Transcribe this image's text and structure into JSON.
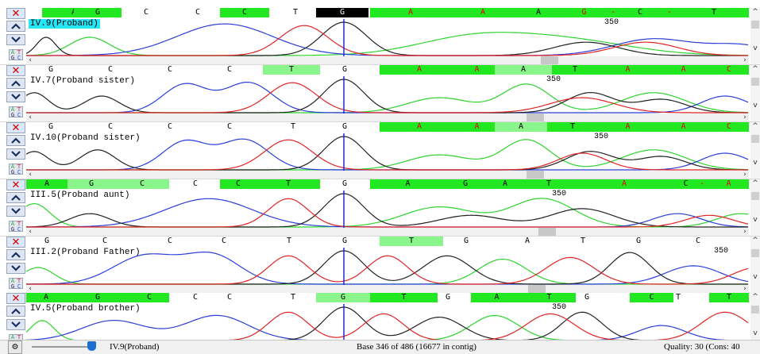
{
  "colors": {
    "bright": "#22e822",
    "light": "#8af58a",
    "black": "#000000",
    "trace_a": "#2fd32f",
    "trace_c": "#2b3ed8",
    "trace_g": "#222222",
    "trace_t": "#e02424",
    "cursor": "#1a1ad6"
  },
  "position_label": "350",
  "panels": [
    {
      "label": "IV.9(Proband)",
      "label_highlight": true,
      "bases": [
        {
          "b": "A",
          "x": 20,
          "w": 80,
          "bg": "#22e822",
          "c": "#000"
        },
        {
          "b": "G",
          "x": 60,
          "w": 60,
          "bg": "#22e822",
          "c": "#000"
        },
        {
          "b": "C",
          "x": 150,
          "w": 1,
          "bg": "",
          "c": "#000"
        },
        {
          "b": "C",
          "x": 215,
          "w": 1,
          "bg": "",
          "c": "#000"
        },
        {
          "b": "C",
          "x": 244,
          "w": 62,
          "bg": "#22e822",
          "c": "#000"
        },
        {
          "b": "T",
          "x": 338,
          "w": 1,
          "bg": "",
          "c": "#000"
        },
        {
          "b": "G",
          "x": 365,
          "w": 66,
          "bg": "#000000",
          "c": "#fff"
        },
        {
          "b": "A",
          "x": 433,
          "w": 102,
          "bg": "#22e822",
          "c": "#e00000"
        },
        {
          "b": "A",
          "x": 535,
          "w": 80,
          "bg": "#22e822",
          "c": "#e00000"
        },
        {
          "b": "A",
          "x": 615,
          "w": 60,
          "bg": "#22e822",
          "c": "#000"
        },
        {
          "b": "G",
          "x": 675,
          "w": 55,
          "bg": "#22e822",
          "c": "#e00000"
        },
        {
          "b": "-",
          "x": 730,
          "w": 18,
          "bg": "#22e822",
          "c": "#e00000"
        },
        {
          "b": "C",
          "x": 748,
          "w": 50,
          "bg": "#22e822",
          "c": "#000"
        },
        {
          "b": "-",
          "x": 798,
          "w": 24,
          "bg": "#22e822",
          "c": "#e00000"
        },
        {
          "b": "T",
          "x": 822,
          "w": 88,
          "bg": "#22e822",
          "c": "#000"
        }
      ],
      "pos_x": 728
    },
    {
      "label": "IV.7(Proband sister)",
      "label_highlight": false,
      "bases": [
        {
          "b": "G",
          "x": 30,
          "w": 1,
          "bg": "",
          "c": "#000"
        },
        {
          "b": "C",
          "x": 105,
          "w": 1,
          "bg": "",
          "c": "#000"
        },
        {
          "b": "C",
          "x": 180,
          "w": 1,
          "bg": "",
          "c": "#000"
        },
        {
          "b": "C",
          "x": 255,
          "w": 1,
          "bg": "",
          "c": "#000"
        },
        {
          "b": "T",
          "x": 298,
          "w": 72,
          "bg": "#8af58a",
          "c": "#000"
        },
        {
          "b": "G",
          "x": 400,
          "w": 1,
          "bg": "",
          "c": "#000"
        },
        {
          "b": "A",
          "x": 445,
          "w": 100,
          "bg": "#22e822",
          "c": "#e00000"
        },
        {
          "b": "A",
          "x": 545,
          "w": 45,
          "bg": "#22e822",
          "c": "#e00000"
        },
        {
          "b": "A",
          "x": 590,
          "w": 72,
          "bg": "#8af58a",
          "c": "#000"
        },
        {
          "b": "T",
          "x": 662,
          "w": 58,
          "bg": "#22e822",
          "c": "#000"
        },
        {
          "b": "A",
          "x": 720,
          "w": 75,
          "bg": "#22e822",
          "c": "#e00000"
        },
        {
          "b": "A",
          "x": 795,
          "w": 65,
          "bg": "#22e822",
          "c": "#e00000"
        },
        {
          "b": "C",
          "x": 860,
          "w": 50,
          "bg": "#22e822",
          "c": "#e00000"
        }
      ],
      "pos_x": 655
    },
    {
      "label": "IV.10(Proband sister)",
      "label_highlight": false,
      "bases": [
        {
          "b": "G",
          "x": 30,
          "w": 1,
          "bg": "",
          "c": "#000"
        },
        {
          "b": "C",
          "x": 105,
          "w": 1,
          "bg": "",
          "c": "#000"
        },
        {
          "b": "C",
          "x": 180,
          "w": 1,
          "bg": "",
          "c": "#000"
        },
        {
          "b": "C",
          "x": 255,
          "w": 1,
          "bg": "",
          "c": "#000"
        },
        {
          "b": "T",
          "x": 335,
          "w": 1,
          "bg": "",
          "c": "#000"
        },
        {
          "b": "G",
          "x": 400,
          "w": 1,
          "bg": "",
          "c": "#000"
        },
        {
          "b": "A",
          "x": 445,
          "w": 100,
          "bg": "#22e822",
          "c": "#e00000"
        },
        {
          "b": "A",
          "x": 545,
          "w": 45,
          "bg": "#22e822",
          "c": "#e00000"
        },
        {
          "b": "A",
          "x": 590,
          "w": 66,
          "bg": "#8af58a",
          "c": "#000"
        },
        {
          "b": "T",
          "x": 656,
          "w": 64,
          "bg": "#22e822",
          "c": "#000"
        },
        {
          "b": "A",
          "x": 720,
          "w": 75,
          "bg": "#22e822",
          "c": "#e00000"
        },
        {
          "b": "A",
          "x": 795,
          "w": 65,
          "bg": "#22e822",
          "c": "#e00000"
        },
        {
          "b": "C",
          "x": 860,
          "w": 50,
          "bg": "#22e822",
          "c": "#e00000"
        }
      ],
      "pos_x": 715
    },
    {
      "label": "III.5(Proband aunt)",
      "label_highlight": false,
      "bases": [
        {
          "b": "A",
          "x": 0,
          "w": 52,
          "bg": "#22e822",
          "c": "#000"
        },
        {
          "b": "G",
          "x": 52,
          "w": 60,
          "bg": "#8af58a",
          "c": "#000"
        },
        {
          "b": "C",
          "x": 112,
          "w": 68,
          "bg": "#8af58a",
          "c": "#000"
        },
        {
          "b": "C",
          "x": 212,
          "w": 1,
          "bg": "",
          "c": "#000"
        },
        {
          "b": "C",
          "x": 244,
          "w": 46,
          "bg": "#22e822",
          "c": "#000"
        },
        {
          "b": "T",
          "x": 290,
          "w": 80,
          "bg": "#22e822",
          "c": "#000"
        },
        {
          "b": "G",
          "x": 400,
          "w": 1,
          "bg": "",
          "c": "#000"
        },
        {
          "b": "A",
          "x": 433,
          "w": 95,
          "bg": "#22e822",
          "c": "#000"
        },
        {
          "b": "G",
          "x": 528,
          "w": 50,
          "bg": "#22e822",
          "c": "#000"
        },
        {
          "b": "A",
          "x": 578,
          "w": 50,
          "bg": "#22e822",
          "c": "#000"
        },
        {
          "b": "T",
          "x": 628,
          "w": 60,
          "bg": "#22e822",
          "c": "#000"
        },
        {
          "b": "A",
          "x": 688,
          "w": 130,
          "bg": "#22e822",
          "c": "#e00000"
        },
        {
          "b": "C",
          "x": 818,
          "w": 25,
          "bg": "#22e822",
          "c": "#000"
        },
        {
          "b": "-",
          "x": 843,
          "w": 16,
          "bg": "#22e822",
          "c": "#e00000"
        },
        {
          "b": "A",
          "x": 859,
          "w": 51,
          "bg": "#22e822",
          "c": "#e00000"
        }
      ],
      "pos_x": 662
    },
    {
      "label": "III.2(Proband Father)",
      "label_highlight": false,
      "bases": [
        {
          "b": "G",
          "x": 25,
          "w": 1,
          "bg": "",
          "c": "#000"
        },
        {
          "b": "C",
          "x": 98,
          "w": 1,
          "bg": "",
          "c": "#000"
        },
        {
          "b": "C",
          "x": 180,
          "w": 1,
          "bg": "",
          "c": "#000"
        },
        {
          "b": "C",
          "x": 248,
          "w": 1,
          "bg": "",
          "c": "#000"
        },
        {
          "b": "T",
          "x": 330,
          "w": 1,
          "bg": "",
          "c": "#000"
        },
        {
          "b": "G",
          "x": 400,
          "w": 1,
          "bg": "",
          "c": "#000"
        },
        {
          "b": "T",
          "x": 445,
          "w": 80,
          "bg": "#8af58a",
          "c": "#000"
        },
        {
          "b": "G",
          "x": 553,
          "w": 1,
          "bg": "",
          "c": "#000"
        },
        {
          "b": "A",
          "x": 630,
          "w": 1,
          "bg": "",
          "c": "#000"
        },
        {
          "b": "T",
          "x": 700,
          "w": 1,
          "bg": "",
          "c": "#000"
        },
        {
          "b": "G",
          "x": 770,
          "w": 1,
          "bg": "",
          "c": "#000"
        },
        {
          "b": "C",
          "x": 845,
          "w": 1,
          "bg": "",
          "c": "#000"
        }
      ],
      "pos_x": 866
    },
    {
      "label": "IV.5(Proband brother)",
      "label_highlight": false,
      "bases": [
        {
          "b": "A",
          "x": 0,
          "w": 50,
          "bg": "#22e822",
          "c": "#000"
        },
        {
          "b": "G",
          "x": 50,
          "w": 80,
          "bg": "#22e822",
          "c": "#000"
        },
        {
          "b": "C",
          "x": 130,
          "w": 50,
          "bg": "#22e822",
          "c": "#000"
        },
        {
          "b": "C",
          "x": 212,
          "w": 1,
          "bg": "",
          "c": "#000"
        },
        {
          "b": "C",
          "x": 255,
          "w": 1,
          "bg": "",
          "c": "#000"
        },
        {
          "b": "T",
          "x": 335,
          "w": 1,
          "bg": "",
          "c": "#000"
        },
        {
          "b": "G",
          "x": 365,
          "w": 68,
          "bg": "#8af58a",
          "c": "#000"
        },
        {
          "b": "T",
          "x": 433,
          "w": 85,
          "bg": "#22e822",
          "c": "#000"
        },
        {
          "b": "G",
          "x": 530,
          "w": 1,
          "bg": "",
          "c": "#000"
        },
        {
          "b": "A",
          "x": 560,
          "w": 65,
          "bg": "#22e822",
          "c": "#000"
        },
        {
          "b": "T",
          "x": 625,
          "w": 67,
          "bg": "#22e822",
          "c": "#000"
        },
        {
          "b": "G",
          "x": 705,
          "w": 1,
          "bg": "",
          "c": "#000"
        },
        {
          "b": "C",
          "x": 760,
          "w": 55,
          "bg": "#22e822",
          "c": "#000"
        },
        {
          "b": "T",
          "x": 820,
          "w": 1,
          "bg": "",
          "c": "#000"
        },
        {
          "b": "T",
          "x": 860,
          "w": 50,
          "bg": "#22e822",
          "c": "#000"
        }
      ],
      "pos_x": 662
    }
  ],
  "status": {
    "current_sample": "IV.9(Proband)",
    "base_info": "Base 346 of 486 (16677 in contig)",
    "quality": "Quality: 30 (Cons: 40"
  },
  "slider_level": 0.55
}
